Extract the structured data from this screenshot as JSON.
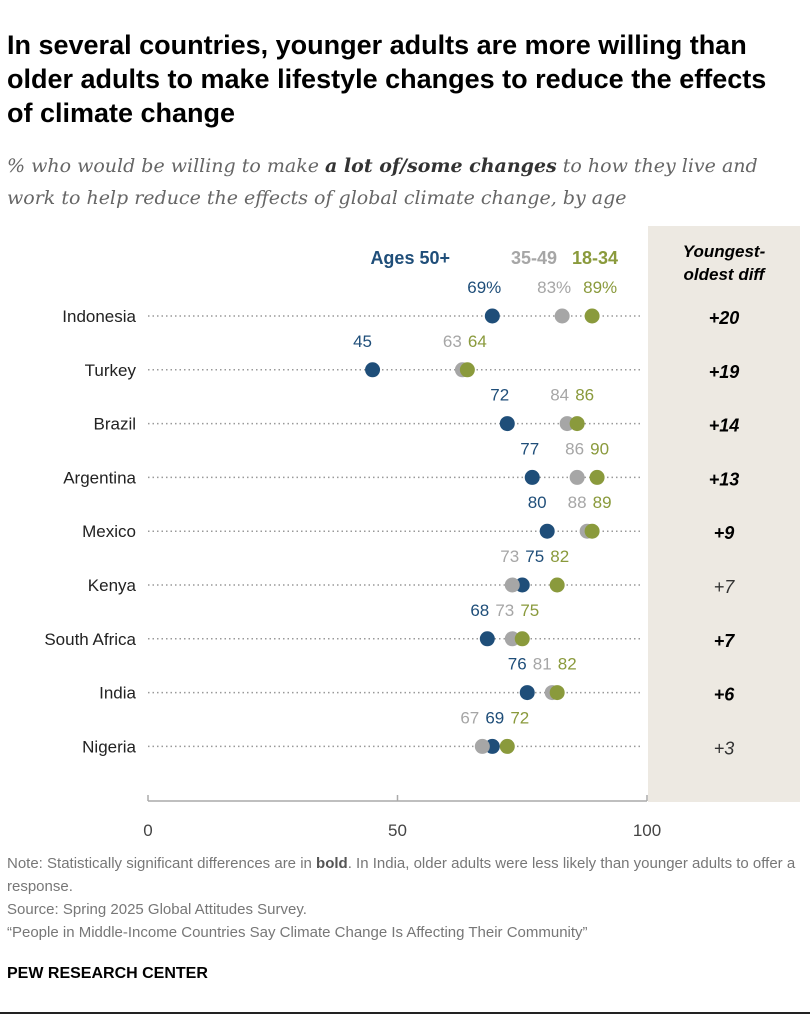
{
  "title": "In several countries, younger adults are more willing than older adults to make lifestyle changes to reduce the effects of climate change",
  "subtitle": {
    "pre": "% who would be willing to make ",
    "bold": "a lot of/some changes",
    "post": " to how they live and work to help reduce the effects of global climate change, by age"
  },
  "note": {
    "pre": "Note: Statistically significant differences are in ",
    "bold": "bold",
    "post": ". In India, older adults were less likely than younger adults to offer a response."
  },
  "source": "Source: Spring 2025 Global Attitudes Survey.",
  "report": "“People in Middle-Income Countries Say Climate Change Is Affecting Their Community”",
  "logo": "PEW RESEARCH CENTER",
  "chart_data": {
    "type": "dot",
    "categories": [
      "Indonesia",
      "Turkey",
      "Brazil",
      "Argentina",
      "Mexico",
      "Kenya",
      "South Africa",
      "India",
      "Nigeria"
    ],
    "series": [
      {
        "name": "Ages 50+",
        "color": "#1f4e79",
        "values": [
          69,
          45,
          72,
          77,
          80,
          75,
          68,
          76,
          69
        ]
      },
      {
        "name": "35-49",
        "color": "#a6a6a6",
        "values": [
          83,
          63,
          84,
          86,
          88,
          73,
          73,
          81,
          67
        ]
      },
      {
        "name": "18-34",
        "color": "#8a9a3c",
        "values": [
          89,
          64,
          86,
          90,
          89,
          82,
          75,
          82,
          72
        ]
      }
    ],
    "label_suffix_first_row": "%",
    "diff_header": [
      "Youngest-",
      "oldest diff"
    ],
    "diff": [
      "+20",
      "+19",
      "+14",
      "+13",
      "+9",
      "+7",
      "+7",
      "+6",
      "+3"
    ],
    "diff_bold": [
      true,
      true,
      true,
      true,
      true,
      false,
      true,
      true,
      false
    ],
    "xlim": [
      0,
      100
    ],
    "xticks": [
      0,
      50,
      100
    ],
    "legend_placement": "top"
  }
}
